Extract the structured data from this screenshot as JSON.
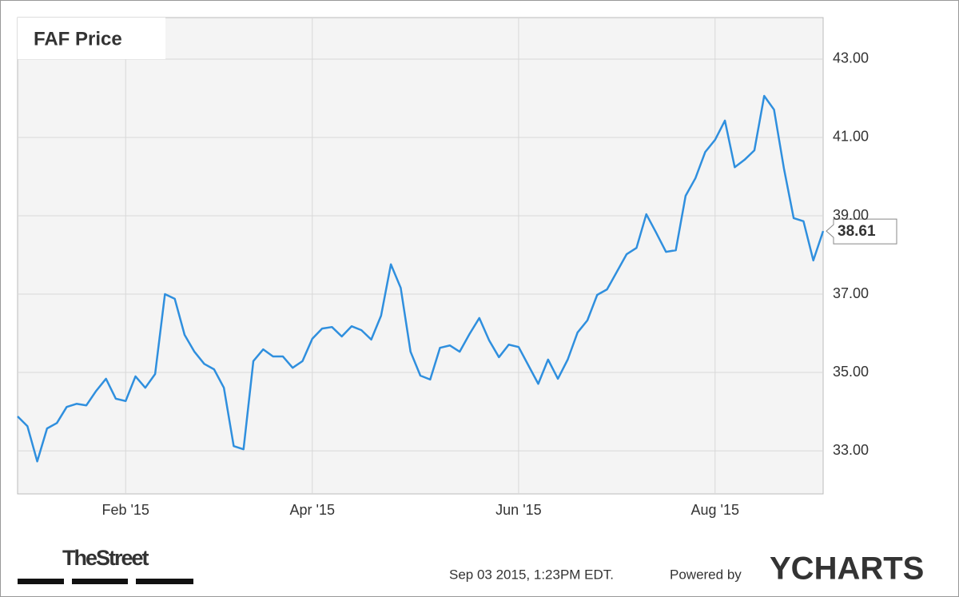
{
  "chart_data": {
    "type": "line",
    "title": "FAF Price",
    "categories": [
      null,
      null,
      null,
      null,
      null,
      null,
      null,
      null,
      null,
      null,
      null,
      "Feb '15",
      null,
      null,
      null,
      null,
      null,
      null,
      null,
      null,
      null,
      null,
      null,
      null,
      null,
      null,
      null,
      null,
      null,
      null,
      "Apr '15",
      null,
      null,
      null,
      null,
      null,
      null,
      null,
      null,
      null,
      null,
      null,
      null,
      null,
      null,
      null,
      null,
      null,
      null,
      null,
      null,
      "Jun '15",
      null,
      null,
      null,
      null,
      null,
      null,
      null,
      null,
      null,
      null,
      null,
      null,
      null,
      null,
      null,
      null,
      null,
      null,
      null,
      "Aug '15",
      null,
      null,
      null,
      null,
      null,
      null,
      null,
      null,
      null,
      null,
      null
    ],
    "series": [
      {
        "name": "FAF Price",
        "color": "#2f8fde",
        "values": [
          33.88,
          33.63,
          32.73,
          33.57,
          33.71,
          34.12,
          34.2,
          34.16,
          34.53,
          34.84,
          34.33,
          34.27,
          34.9,
          34.61,
          34.96,
          37,
          36.88,
          35.96,
          35.53,
          35.22,
          35.08,
          34.61,
          33.12,
          33.04,
          35.29,
          35.59,
          35.41,
          35.41,
          35.12,
          35.29,
          35.86,
          36.12,
          36.16,
          35.92,
          36.18,
          36.08,
          35.84,
          36.45,
          37.76,
          37.16,
          35.53,
          34.92,
          34.82,
          35.63,
          35.69,
          35.53,
          35.98,
          36.39,
          35.82,
          35.39,
          35.71,
          35.65,
          35.18,
          34.71,
          35.33,
          34.84,
          35.33,
          36.02,
          36.33,
          36.98,
          37.12,
          37.57,
          38.02,
          38.18,
          39.04,
          38.57,
          38.08,
          38.12,
          39.51,
          39.96,
          40.63,
          40.94,
          41.43,
          40.24,
          40.43,
          40.67,
          42.06,
          41.71,
          40.22,
          38.94,
          38.86,
          37.86,
          38.61
        ]
      }
    ],
    "ylim": [
      31.9,
      44.06
    ],
    "yticks": [
      {
        "value": 33,
        "label": "33.00"
      },
      {
        "value": 35,
        "label": "35.00"
      },
      {
        "value": 37,
        "label": "37.00"
      },
      {
        "value": 39,
        "label": "39.00"
      },
      {
        "value": 41,
        "label": "41.00"
      },
      {
        "value": 43,
        "label": "43.00"
      }
    ],
    "grid": true
  },
  "footer": {
    "logo": "TheStreet",
    "timestamp": "Sep 03 2015, 1:23PM EDT.",
    "powered_by": "Powered by",
    "brand": "YCHARTS"
  }
}
